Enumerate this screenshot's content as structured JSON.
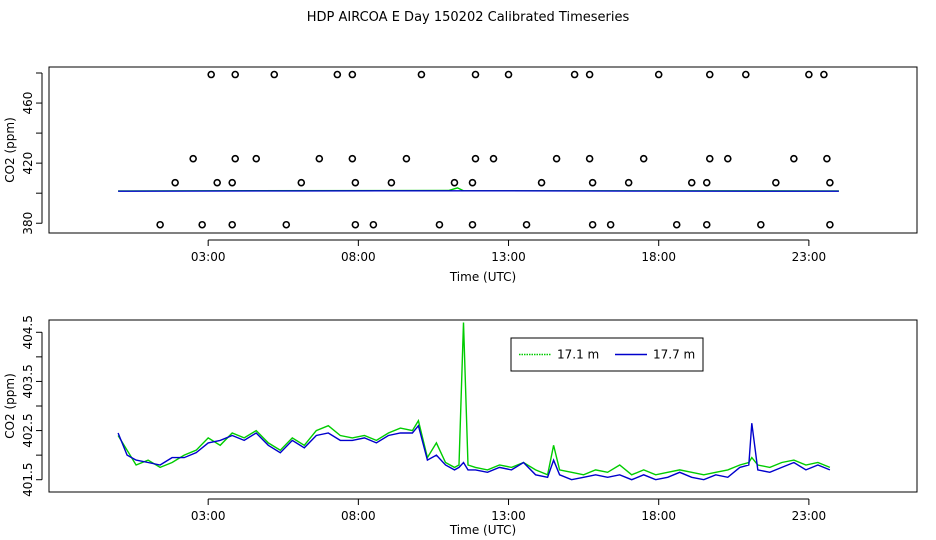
{
  "page": {
    "title": "HDP AIRCOA E  Day 150202  Calibrated Timeseries"
  },
  "colors": {
    "green": "#00cc00",
    "blue": "#0000cc",
    "axis": "#000000"
  },
  "chart_data": [
    {
      "type": "scatter",
      "xlabel": "Time (UTC)",
      "ylabel": "CO2 (ppm)",
      "xlim": [
        -2.3,
        26.6
      ],
      "ylim": [
        373.5,
        484
      ],
      "x_ticks": [
        3,
        8,
        13,
        18,
        23
      ],
      "x_tick_labels": [
        "03:00",
        "08:00",
        "13:00",
        "18:00",
        "23:00"
      ],
      "y_ticks": [
        380,
        420,
        460
      ],
      "y_tick_labels": [
        "380",
        "420",
        "460"
      ],
      "grid": false,
      "points": [
        {
          "x": 1.4,
          "y": 379
        },
        {
          "x": 1.9,
          "y": 407
        },
        {
          "x": 2.5,
          "y": 423
        },
        {
          "x": 3.1,
          "y": 479
        },
        {
          "x": 2.8,
          "y": 379
        },
        {
          "x": 3.3,
          "y": 407
        },
        {
          "x": 3.8,
          "y": 379
        },
        {
          "x": 3.8,
          "y": 407
        },
        {
          "x": 3.9,
          "y": 423
        },
        {
          "x": 3.9,
          "y": 479
        },
        {
          "x": 4.6,
          "y": 423
        },
        {
          "x": 5.2,
          "y": 479
        },
        {
          "x": 5.6,
          "y": 379
        },
        {
          "x": 6.1,
          "y": 407
        },
        {
          "x": 6.7,
          "y": 423
        },
        {
          "x": 7.3,
          "y": 479
        },
        {
          "x": 7.8,
          "y": 479
        },
        {
          "x": 7.8,
          "y": 423
        },
        {
          "x": 7.9,
          "y": 407
        },
        {
          "x": 7.9,
          "y": 379
        },
        {
          "x": 8.5,
          "y": 379
        },
        {
          "x": 9.1,
          "y": 407
        },
        {
          "x": 9.6,
          "y": 423
        },
        {
          "x": 10.1,
          "y": 479
        },
        {
          "x": 10.7,
          "y": 379
        },
        {
          "x": 11.2,
          "y": 407
        },
        {
          "x": 11.8,
          "y": 379
        },
        {
          "x": 11.8,
          "y": 407
        },
        {
          "x": 11.9,
          "y": 423
        },
        {
          "x": 11.9,
          "y": 479
        },
        {
          "x": 12.5,
          "y": 423
        },
        {
          "x": 13.0,
          "y": 479
        },
        {
          "x": 13.6,
          "y": 379
        },
        {
          "x": 14.1,
          "y": 407
        },
        {
          "x": 14.6,
          "y": 423
        },
        {
          "x": 15.2,
          "y": 479
        },
        {
          "x": 15.7,
          "y": 479
        },
        {
          "x": 15.7,
          "y": 423
        },
        {
          "x": 15.8,
          "y": 407
        },
        {
          "x": 15.8,
          "y": 379
        },
        {
          "x": 16.4,
          "y": 379
        },
        {
          "x": 17.0,
          "y": 407
        },
        {
          "x": 17.5,
          "y": 423
        },
        {
          "x": 18.0,
          "y": 479
        },
        {
          "x": 18.6,
          "y": 379
        },
        {
          "x": 19.1,
          "y": 407
        },
        {
          "x": 19.6,
          "y": 379
        },
        {
          "x": 19.6,
          "y": 407
        },
        {
          "x": 19.7,
          "y": 423
        },
        {
          "x": 19.7,
          "y": 479
        },
        {
          "x": 20.3,
          "y": 423
        },
        {
          "x": 20.9,
          "y": 479
        },
        {
          "x": 21.4,
          "y": 379
        },
        {
          "x": 21.9,
          "y": 407
        },
        {
          "x": 22.5,
          "y": 423
        },
        {
          "x": 23.0,
          "y": 479
        },
        {
          "x": 23.5,
          "y": 479
        },
        {
          "x": 23.6,
          "y": 423
        },
        {
          "x": 23.7,
          "y": 407
        },
        {
          "x": 23.7,
          "y": 379
        }
      ],
      "series": [
        {
          "color": "#00cc00",
          "x": [
            0.0,
            11.0,
            11.3,
            11.5,
            24.0
          ],
          "y": [
            401.5,
            401.8,
            403.5,
            401.6,
            401.5
          ]
        },
        {
          "color": "#0000cc",
          "x": [
            0.0,
            6.0,
            12.0,
            18.0,
            24.0
          ],
          "y": [
            401.3,
            401.5,
            401.6,
            401.4,
            401.3
          ]
        }
      ]
    },
    {
      "type": "line",
      "xlabel": "Time (UTC)",
      "ylabel": "CO2 (ppm)",
      "xlim": [
        -2.3,
        26.6
      ],
      "ylim": [
        401.25,
        404.75
      ],
      "x_ticks": [
        3,
        8,
        13,
        18,
        23
      ],
      "x_tick_labels": [
        "03:00",
        "08:00",
        "13:00",
        "18:00",
        "23:00"
      ],
      "y_ticks": [
        401.5,
        402.5,
        403.5,
        404.5
      ],
      "y_tick_labels": [
        "401.5",
        "402.5",
        "403.5",
        "404.5"
      ],
      "grid": false,
      "legend": "top-center",
      "series": [
        {
          "name": "17.1 m",
          "color": "#00cc00",
          "x": [
            0.0,
            0.3,
            0.6,
            1.0,
            1.4,
            1.8,
            2.2,
            2.6,
            3.0,
            3.4,
            3.8,
            4.2,
            4.6,
            5.0,
            5.4,
            5.8,
            6.2,
            6.6,
            7.0,
            7.4,
            7.8,
            8.2,
            8.6,
            9.0,
            9.4,
            9.8,
            10.0,
            10.3,
            10.6,
            10.9,
            11.2,
            11.35,
            11.5,
            11.65,
            11.9,
            12.3,
            12.7,
            13.1,
            13.5,
            13.9,
            14.3,
            14.5,
            14.7,
            15.1,
            15.5,
            15.9,
            16.3,
            16.7,
            17.1,
            17.5,
            17.9,
            18.3,
            18.7,
            19.1,
            19.5,
            19.9,
            20.3,
            20.7,
            21.0,
            21.1,
            21.3,
            21.7,
            22.1,
            22.5,
            22.9,
            23.3,
            23.7
          ],
          "y": [
            402.4,
            402.1,
            401.8,
            401.9,
            401.75,
            401.85,
            402.0,
            402.1,
            402.35,
            402.2,
            402.45,
            402.35,
            402.5,
            402.25,
            402.1,
            402.35,
            402.2,
            402.5,
            402.6,
            402.4,
            402.35,
            402.4,
            402.3,
            402.45,
            402.55,
            402.5,
            402.7,
            401.95,
            402.25,
            401.85,
            401.75,
            401.8,
            404.7,
            401.8,
            401.75,
            401.7,
            401.8,
            401.75,
            401.85,
            401.7,
            401.6,
            402.2,
            401.7,
            401.65,
            401.6,
            401.7,
            401.65,
            401.8,
            401.6,
            401.7,
            401.6,
            401.65,
            401.7,
            401.65,
            401.6,
            401.65,
            401.7,
            401.8,
            401.85,
            401.95,
            401.8,
            401.75,
            401.85,
            401.9,
            401.8,
            401.85,
            401.75
          ]
        },
        {
          "name": "17.7 m",
          "color": "#0000cc",
          "x": [
            0.0,
            0.3,
            0.6,
            1.0,
            1.4,
            1.8,
            2.2,
            2.6,
            3.0,
            3.4,
            3.8,
            4.2,
            4.6,
            5.0,
            5.4,
            5.8,
            6.2,
            6.6,
            7.0,
            7.4,
            7.8,
            8.2,
            8.6,
            9.0,
            9.4,
            9.8,
            10.0,
            10.3,
            10.6,
            10.9,
            11.2,
            11.35,
            11.5,
            11.65,
            11.9,
            12.3,
            12.7,
            13.1,
            13.5,
            13.9,
            14.3,
            14.5,
            14.7,
            15.1,
            15.5,
            15.9,
            16.3,
            16.7,
            17.1,
            17.5,
            17.9,
            18.3,
            18.7,
            19.1,
            19.5,
            19.9,
            20.3,
            20.7,
            21.0,
            21.1,
            21.3,
            21.7,
            22.1,
            22.5,
            22.9,
            23.3,
            23.7
          ],
          "y": [
            402.45,
            402.0,
            401.9,
            401.85,
            401.8,
            401.95,
            401.95,
            402.05,
            402.25,
            402.3,
            402.4,
            402.3,
            402.45,
            402.2,
            402.05,
            402.3,
            402.15,
            402.4,
            402.45,
            402.3,
            402.3,
            402.35,
            402.25,
            402.4,
            402.45,
            402.45,
            402.6,
            401.9,
            402.0,
            401.8,
            401.7,
            401.75,
            401.85,
            401.7,
            401.7,
            401.65,
            401.75,
            401.7,
            401.85,
            401.6,
            401.55,
            401.9,
            401.6,
            401.5,
            401.55,
            401.6,
            401.55,
            401.6,
            401.5,
            401.6,
            401.5,
            401.55,
            401.65,
            401.55,
            401.5,
            401.6,
            401.55,
            401.75,
            401.8,
            402.65,
            401.7,
            401.65,
            401.75,
            401.85,
            401.7,
            401.8,
            401.7
          ]
        }
      ]
    }
  ]
}
